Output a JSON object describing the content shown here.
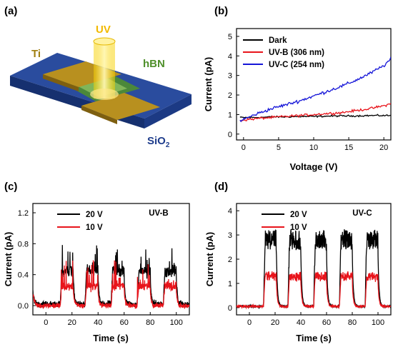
{
  "colors": {
    "dark": "#000000",
    "uvb": "#e8141b",
    "uvc": "#1515d8",
    "substrate": "#1f3d8c",
    "electrode": "#b38a1e",
    "hbn": "#4a8a2a",
    "uv_beam": "#f5c400"
  },
  "schematic": {
    "panel_label": "(a)",
    "uv_label": "UV",
    "ti_label": "Ti",
    "hbn_label": "hBN",
    "substrate_label_main": "SiO",
    "substrate_label_sub": "2"
  },
  "chart_data": [
    {
      "id": "b",
      "panel_label": "(b)",
      "type": "line",
      "xlabel": "Voltage (V)",
      "ylabel": "Current (pA)",
      "xlim": [
        -1,
        21
      ],
      "ylim": [
        -0.3,
        5.4
      ],
      "xticks": [
        0,
        5,
        10,
        15,
        20
      ],
      "xtick_labels": [
        "0",
        "5",
        "10",
        "15",
        "20"
      ],
      "yticks": [
        0,
        1,
        2,
        3,
        4,
        5
      ],
      "ytick_labels": [
        "0",
        "1",
        "2",
        "3",
        "4",
        "5"
      ],
      "legend_position": "top-left",
      "series": [
        {
          "name": "Dark",
          "color_key": "dark",
          "x": [
            -0.5,
            0,
            2,
            4,
            6,
            8,
            10,
            12,
            14,
            16,
            18,
            20,
            21
          ],
          "y": [
            0.85,
            0.85,
            0.85,
            0.88,
            0.88,
            0.9,
            0.9,
            0.92,
            0.93,
            0.93,
            0.95,
            0.95,
            0.95
          ]
        },
        {
          "name": "UV-B (306 nm)",
          "color_key": "uvb",
          "x": [
            -0.5,
            0,
            2,
            4,
            6,
            8,
            10,
            12,
            14,
            16,
            18,
            20,
            21
          ],
          "y": [
            0.7,
            0.72,
            0.8,
            0.85,
            0.9,
            0.95,
            1.0,
            1.05,
            1.1,
            1.2,
            1.3,
            1.45,
            1.55
          ]
        },
        {
          "name": "UV-C (254 nm)",
          "color_key": "uvc",
          "x": [
            -0.5,
            0,
            2,
            4,
            6,
            8,
            10,
            12,
            14,
            16,
            18,
            20,
            21
          ],
          "y": [
            0.7,
            0.75,
            1.05,
            1.3,
            1.5,
            1.7,
            1.95,
            2.2,
            2.45,
            2.75,
            3.1,
            3.5,
            3.85
          ]
        }
      ]
    },
    {
      "id": "c",
      "panel_label": "(c)",
      "type": "line",
      "xlabel": "Time (s)",
      "ylabel": "Current (pA)",
      "annotation": "UV-B",
      "xlim": [
        -10,
        110
      ],
      "ylim": [
        -0.12,
        1.32
      ],
      "xticks": [
        0,
        20,
        40,
        60,
        80,
        100
      ],
      "xtick_labels": [
        "0",
        "20",
        "40",
        "60",
        "80",
        "100"
      ],
      "yticks": [
        0.0,
        0.4,
        0.8,
        1.2
      ],
      "ytick_labels": [
        "0.0",
        "0.4",
        "0.8",
        "1.2"
      ],
      "legend_position": "top-left",
      "on_intervals": [
        [
          11,
          21
        ],
        [
          30,
          40
        ],
        [
          50,
          60
        ],
        [
          70,
          80
        ],
        [
          90,
          100
        ]
      ],
      "series": [
        {
          "name": "20 V",
          "color_key": "dark",
          "base": 0.02,
          "peak": 0.45,
          "noise": 0.06
        },
        {
          "name": "10 V",
          "color_key": "uvb",
          "base": 0.0,
          "peak": 0.25,
          "noise": 0.05
        }
      ]
    },
    {
      "id": "d",
      "panel_label": "(d)",
      "type": "line",
      "xlabel": "Time (s)",
      "ylabel": "Current (pA)",
      "annotation": "UV-C",
      "xlim": [
        -10,
        110
      ],
      "ylim": [
        -0.3,
        4.3
      ],
      "xticks": [
        0,
        20,
        40,
        60,
        80,
        100
      ],
      "xtick_labels": [
        "0",
        "20",
        "40",
        "60",
        "80",
        "100"
      ],
      "yticks": [
        0,
        1,
        2,
        3,
        4
      ],
      "ytick_labels": [
        "0",
        "1",
        "2",
        "3",
        "4"
      ],
      "legend_position": "top-left",
      "on_intervals": [
        [
          11,
          21
        ],
        [
          30,
          40
        ],
        [
          50,
          60
        ],
        [
          70,
          80
        ],
        [
          90,
          100
        ]
      ],
      "series": [
        {
          "name": "20 V",
          "color_key": "dark",
          "base": 0.05,
          "peak": 2.8,
          "noise": 0.06
        },
        {
          "name": "10 V",
          "color_key": "uvb",
          "base": 0.05,
          "peak": 1.3,
          "noise": 0.08
        }
      ]
    }
  ]
}
